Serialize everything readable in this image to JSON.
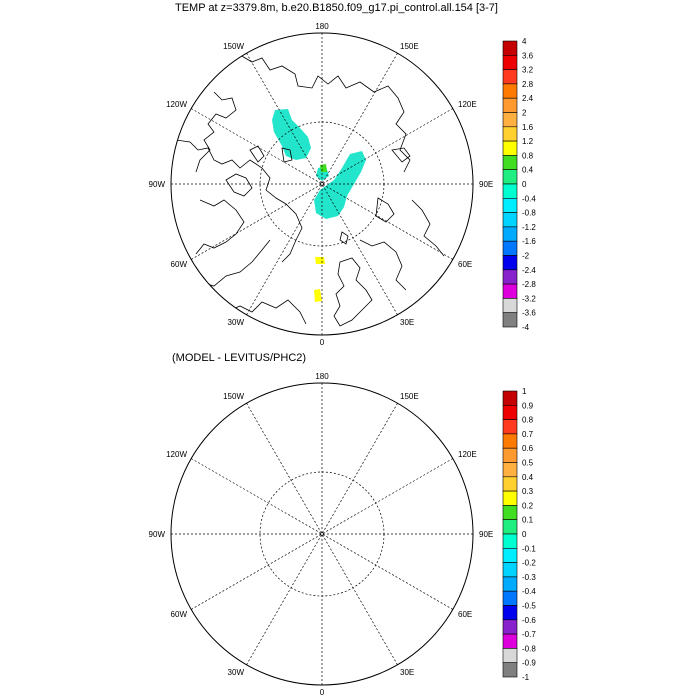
{
  "top_panel": {
    "title": "TEMP at z=3379.8m, b.e20.B1850.f09_g17.pi_control.all.154 [3-7]",
    "lon_labels": {
      "l180": "180",
      "l150w": "150W",
      "l150e": "150E",
      "l120w": "120W",
      "l120e": "120E",
      "l90w": "90W",
      "l90e": "90E",
      "l60w": "60W",
      "l60e": "60E",
      "l30w": "30W",
      "l30e": "30E",
      "l0": "0"
    },
    "colorbar": {
      "labels": [
        "4",
        "3.6",
        "3.2",
        "2.8",
        "2.4",
        "2",
        "1.6",
        "1.2",
        "0.8",
        "0.4",
        "0",
        "-0.4",
        "-0.8",
        "-1.2",
        "-1.6",
        "-2",
        "-2.4",
        "-2.8",
        "-3.2",
        "-3.6",
        "-4"
      ]
    }
  },
  "bottom_panel": {
    "title": "(MODEL - LEVITUS/PHC2)",
    "lon_labels": {
      "l180": "180",
      "l150w": "150W",
      "l150e": "150E",
      "l120w": "120W",
      "l120e": "120E",
      "l90w": "90W",
      "l90e": "90E",
      "l60w": "60W",
      "l60e": "60E",
      "l30w": "30W",
      "l30e": "30E",
      "l0": "0"
    },
    "colorbar": {
      "labels": [
        "1",
        "0.9",
        "0.8",
        "0.7",
        "0.6",
        "0.5",
        "0.4",
        "0.3",
        "0.2",
        "0.1",
        "0",
        "-0.1",
        "-0.2",
        "-0.3",
        "-0.4",
        "-0.5",
        "-0.6",
        "-0.7",
        "-0.8",
        "-0.9",
        "-1"
      ]
    }
  },
  "colorbar_colors": [
    "#c40000",
    "#ee0000",
    "#ff3a1e",
    "#ff7a00",
    "#ff9a30",
    "#ffb040",
    "#ffd030",
    "#ffff00",
    "#40dd20",
    "#20ee80",
    "#00ffd0",
    "#00eeff",
    "#00d4ff",
    "#00aaff",
    "#0077ff",
    "#0000ee",
    "#8822cc",
    "#dd00dd",
    "#d8d8d8",
    "#808080"
  ],
  "colors": {
    "anomaly_fill": "#22e5cc",
    "positive_small": "#ffff00",
    "green": "#40dd20"
  }
}
